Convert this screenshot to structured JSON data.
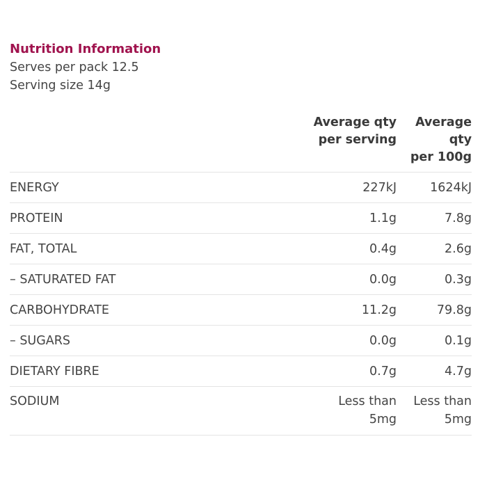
{
  "panel": {
    "title": "Nutrition Information",
    "serves": "Serves per pack 12.5",
    "serving_size": "Serving size 14g"
  },
  "table": {
    "headers": {
      "per_serving": [
        "Average qty",
        "per serving"
      ],
      "per_100g": [
        "Average",
        "qty",
        "per 100g"
      ]
    },
    "rows": [
      {
        "label": "ENERGY",
        "per_serving": "227kJ",
        "per_100g": "1624kJ"
      },
      {
        "label": "PROTEIN",
        "per_serving": "1.1g",
        "per_100g": "7.8g"
      },
      {
        "label": "FAT, TOTAL",
        "per_serving": "0.4g",
        "per_100g": "2.6g"
      },
      {
        "label": "– SATURATED FAT",
        "per_serving": "0.0g",
        "per_100g": "0.3g"
      },
      {
        "label": "CARBOHYDRATE",
        "per_serving": "11.2g",
        "per_100g": "79.8g"
      },
      {
        "label": "– SUGARS",
        "per_serving": "0.0g",
        "per_100g": "0.1g"
      },
      {
        "label": "DIETARY FIBRE",
        "per_serving": "0.7g",
        "per_100g": "4.7g"
      },
      {
        "label": "SODIUM",
        "per_serving": "Less than 5mg",
        "per_100g": "Less than 5mg"
      }
    ],
    "sodium_split": {
      "per_serving": [
        "Less than",
        "5mg"
      ],
      "per_100g": [
        "Less than",
        "5mg"
      ]
    }
  },
  "colors": {
    "title": "#a0134e",
    "text": "#444444",
    "divider": "#e4e4e4"
  }
}
